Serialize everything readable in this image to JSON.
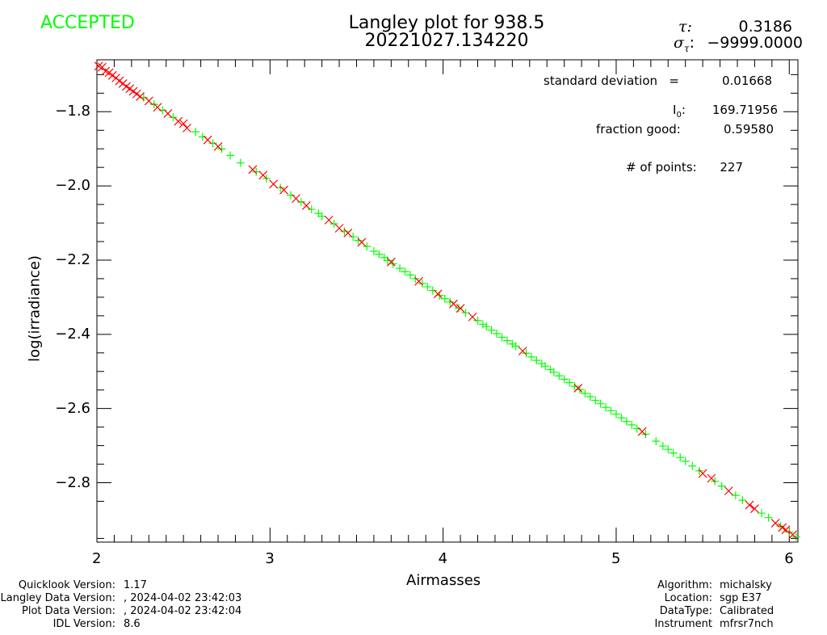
{
  "status": "ACCEPTED",
  "colors": {
    "accepted": "#00ff00",
    "good": "#00ff00",
    "rejected": "#ff0000",
    "axes": "#000000"
  },
  "header": {
    "tau_symbol": "τ:",
    "tau_value": "0.3186",
    "sigma_symbol": "σ",
    "sigma_sub": "τ",
    "sigma_colon": ":",
    "sigma_value": "−9999.0000"
  },
  "stats": {
    "std_label": "standard deviation   =",
    "std_value": "0.01668",
    "i0_label": "I",
    "i0_sub": "0",
    "i0_colon": ":",
    "i0_value": "169.71956",
    "frac_label": "fraction good:",
    "frac_value": "0.59580",
    "npts_label": "# of points:",
    "npts_value": "227"
  },
  "footer_left": [
    {
      "label": "Quicklook Version:",
      "value": "1.17"
    },
    {
      "label": "Langley Data Version:",
      "value": ", 2024-04-02 23:42:03"
    },
    {
      "label": "Plot Data Version:",
      "value": ", 2024-04-02 23:42:04"
    },
    {
      "label": "IDL Version:",
      "value": "8.6"
    }
  ],
  "footer_right": [
    {
      "label": "Algorithm:",
      "value": "michalsky"
    },
    {
      "label": "Location:",
      "value": "sgp E37"
    },
    {
      "label": "DataType:",
      "value": "Calibrated"
    },
    {
      "label": "Instrument",
      "value": "mfrsr7nch"
    }
  ],
  "chart_data": {
    "type": "scatter",
    "title": "Langley plot for 938.5",
    "subtitle": "20221027.134220",
    "xlabel": "Airmasses",
    "ylabel": "log(irradiance)",
    "xlim": [
      2,
      6.05
    ],
    "ylim": [
      -2.96,
      -1.66
    ],
    "xticks": [
      2,
      3,
      4,
      5,
      6
    ],
    "xtick_labels": [
      "2",
      "3",
      "4",
      "5",
      "6"
    ],
    "yticks": [
      -2.8,
      -2.6,
      -2.4,
      -2.2,
      -2.0,
      -1.8
    ],
    "ytick_labels": [
      "−2.8",
      "−2.6",
      "−2.4",
      "−2.2",
      "−2.0",
      "−1.8"
    ],
    "fit": {
      "slope": -0.3186,
      "intercept": -1.038
    },
    "series": [
      {
        "name": "good",
        "marker": "+",
        "x": [
          2.27,
          2.33,
          2.38,
          2.44,
          2.57,
          2.61,
          2.67,
          2.72,
          2.77,
          2.83,
          2.92,
          2.98,
          3.06,
          3.12,
          3.18,
          3.24,
          3.28,
          3.3,
          3.37,
          3.43,
          3.48,
          3.51,
          3.56,
          3.6,
          3.63,
          3.66,
          3.68,
          3.71,
          3.75,
          3.78,
          3.81,
          3.84,
          3.88,
          3.91,
          3.94,
          3.98,
          4.01,
          4.04,
          4.09,
          4.13,
          4.2,
          4.23,
          4.25,
          4.28,
          4.31,
          4.34,
          4.37,
          4.4,
          4.42,
          4.48,
          4.51,
          4.54,
          4.57,
          4.59,
          4.62,
          4.64,
          4.67,
          4.7,
          4.73,
          4.76,
          4.79,
          4.82,
          4.85,
          4.88,
          4.91,
          4.94,
          4.97,
          5.0,
          5.03,
          5.06,
          5.09,
          5.12,
          5.17,
          5.23,
          5.27,
          5.3,
          5.33,
          5.37,
          5.4,
          5.44,
          5.48,
          5.57,
          5.61,
          5.69,
          5.73,
          5.84,
          5.88,
          5.95,
          6.0,
          6.04
        ],
        "y": [
          -1.762,
          -1.78,
          -1.796,
          -1.815,
          -1.854,
          -1.868,
          -1.885,
          -1.9,
          -1.918,
          -1.938,
          -1.962,
          -1.98,
          -2.005,
          -2.025,
          -2.043,
          -2.063,
          -2.074,
          -2.082,
          -2.102,
          -2.122,
          -2.137,
          -2.147,
          -2.163,
          -2.176,
          -2.184,
          -2.193,
          -2.201,
          -2.21,
          -2.222,
          -2.231,
          -2.24,
          -2.25,
          -2.263,
          -2.272,
          -2.282,
          -2.295,
          -2.304,
          -2.313,
          -2.329,
          -2.342,
          -2.363,
          -2.373,
          -2.379,
          -2.389,
          -2.398,
          -2.408,
          -2.417,
          -2.426,
          -2.432,
          -2.451,
          -2.461,
          -2.47,
          -2.479,
          -2.486,
          -2.495,
          -2.502,
          -2.512,
          -2.521,
          -2.53,
          -2.54,
          -2.549,
          -2.559,
          -2.568,
          -2.578,
          -2.587,
          -2.597,
          -2.606,
          -2.615,
          -2.625,
          -2.635,
          -2.644,
          -2.654,
          -2.669,
          -2.688,
          -2.701,
          -2.71,
          -2.72,
          -2.732,
          -2.742,
          -2.755,
          -2.768,
          -2.796,
          -2.809,
          -2.834,
          -2.847,
          -2.882,
          -2.894,
          -2.917,
          -2.933,
          -2.946
        ]
      },
      {
        "name": "rejected",
        "marker": "x",
        "x": [
          2.01,
          2.03,
          2.05,
          2.07,
          2.09,
          2.11,
          2.13,
          2.15,
          2.17,
          2.19,
          2.21,
          2.23,
          2.25,
          2.3,
          2.35,
          2.41,
          2.47,
          2.5,
          2.52,
          2.64,
          2.7,
          2.9,
          2.96,
          3.02,
          3.08,
          3.15,
          3.21,
          3.34,
          3.4,
          3.45,
          3.53,
          3.7,
          3.86,
          3.97,
          4.06,
          4.1,
          4.17,
          4.46,
          4.78,
          5.15,
          5.5,
          5.55,
          5.65,
          5.77,
          5.8,
          5.92,
          5.96,
          5.98,
          6.02
        ],
        "y": [
          -1.677,
          -1.68,
          -1.691,
          -1.695,
          -1.702,
          -1.709,
          -1.717,
          -1.724,
          -1.732,
          -1.738,
          -1.745,
          -1.752,
          -1.759,
          -1.771,
          -1.788,
          -1.805,
          -1.826,
          -1.832,
          -1.844,
          -1.876,
          -1.894,
          -1.956,
          -1.971,
          -1.995,
          -2.011,
          -2.034,
          -2.053,
          -2.092,
          -2.114,
          -2.127,
          -2.152,
          -2.205,
          -2.257,
          -2.291,
          -2.318,
          -2.33,
          -2.353,
          -2.445,
          -2.545,
          -2.662,
          -2.775,
          -2.788,
          -2.822,
          -2.86,
          -2.87,
          -2.909,
          -2.921,
          -2.927,
          -2.94
        ]
      }
    ]
  }
}
